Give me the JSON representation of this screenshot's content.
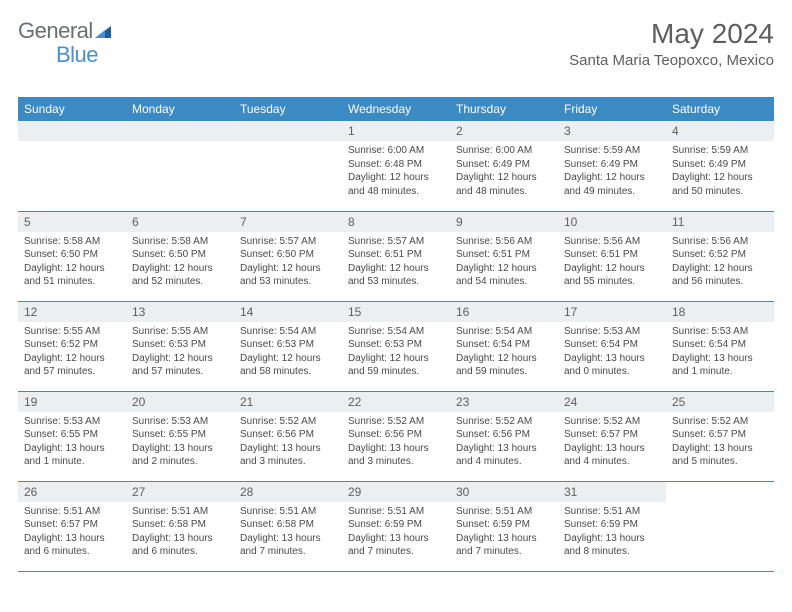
{
  "logo": {
    "text1": "General",
    "text2": "Blue"
  },
  "title": "May 2024",
  "location": "Santa Maria Teopoxco, Mexico",
  "weekdays": [
    "Sunday",
    "Monday",
    "Tuesday",
    "Wednesday",
    "Thursday",
    "Friday",
    "Saturday"
  ],
  "colors": {
    "header_bg": "#3b8ac4",
    "header_text": "#ffffff",
    "daynum_bg": "#eceff1",
    "text_gray": "#5e5e5e",
    "body_text": "#4a4a4a",
    "logo_gray": "#6b6f73",
    "logo_blue": "#4a8fc9"
  },
  "weeks": [
    [
      null,
      null,
      null,
      {
        "n": "1",
        "sr": "6:00 AM",
        "ss": "6:48 PM",
        "dl": "12 hours and 48 minutes."
      },
      {
        "n": "2",
        "sr": "6:00 AM",
        "ss": "6:49 PM",
        "dl": "12 hours and 48 minutes."
      },
      {
        "n": "3",
        "sr": "5:59 AM",
        "ss": "6:49 PM",
        "dl": "12 hours and 49 minutes."
      },
      {
        "n": "4",
        "sr": "5:59 AM",
        "ss": "6:49 PM",
        "dl": "12 hours and 50 minutes."
      }
    ],
    [
      {
        "n": "5",
        "sr": "5:58 AM",
        "ss": "6:50 PM",
        "dl": "12 hours and 51 minutes."
      },
      {
        "n": "6",
        "sr": "5:58 AM",
        "ss": "6:50 PM",
        "dl": "12 hours and 52 minutes."
      },
      {
        "n": "7",
        "sr": "5:57 AM",
        "ss": "6:50 PM",
        "dl": "12 hours and 53 minutes."
      },
      {
        "n": "8",
        "sr": "5:57 AM",
        "ss": "6:51 PM",
        "dl": "12 hours and 53 minutes."
      },
      {
        "n": "9",
        "sr": "5:56 AM",
        "ss": "6:51 PM",
        "dl": "12 hours and 54 minutes."
      },
      {
        "n": "10",
        "sr": "5:56 AM",
        "ss": "6:51 PM",
        "dl": "12 hours and 55 minutes."
      },
      {
        "n": "11",
        "sr": "5:56 AM",
        "ss": "6:52 PM",
        "dl": "12 hours and 56 minutes."
      }
    ],
    [
      {
        "n": "12",
        "sr": "5:55 AM",
        "ss": "6:52 PM",
        "dl": "12 hours and 57 minutes."
      },
      {
        "n": "13",
        "sr": "5:55 AM",
        "ss": "6:53 PM",
        "dl": "12 hours and 57 minutes."
      },
      {
        "n": "14",
        "sr": "5:54 AM",
        "ss": "6:53 PM",
        "dl": "12 hours and 58 minutes."
      },
      {
        "n": "15",
        "sr": "5:54 AM",
        "ss": "6:53 PM",
        "dl": "12 hours and 59 minutes."
      },
      {
        "n": "16",
        "sr": "5:54 AM",
        "ss": "6:54 PM",
        "dl": "12 hours and 59 minutes."
      },
      {
        "n": "17",
        "sr": "5:53 AM",
        "ss": "6:54 PM",
        "dl": "13 hours and 0 minutes."
      },
      {
        "n": "18",
        "sr": "5:53 AM",
        "ss": "6:54 PM",
        "dl": "13 hours and 1 minute."
      }
    ],
    [
      {
        "n": "19",
        "sr": "5:53 AM",
        "ss": "6:55 PM",
        "dl": "13 hours and 1 minute."
      },
      {
        "n": "20",
        "sr": "5:53 AM",
        "ss": "6:55 PM",
        "dl": "13 hours and 2 minutes."
      },
      {
        "n": "21",
        "sr": "5:52 AM",
        "ss": "6:56 PM",
        "dl": "13 hours and 3 minutes."
      },
      {
        "n": "22",
        "sr": "5:52 AM",
        "ss": "6:56 PM",
        "dl": "13 hours and 3 minutes."
      },
      {
        "n": "23",
        "sr": "5:52 AM",
        "ss": "6:56 PM",
        "dl": "13 hours and 4 minutes."
      },
      {
        "n": "24",
        "sr": "5:52 AM",
        "ss": "6:57 PM",
        "dl": "13 hours and 4 minutes."
      },
      {
        "n": "25",
        "sr": "5:52 AM",
        "ss": "6:57 PM",
        "dl": "13 hours and 5 minutes."
      }
    ],
    [
      {
        "n": "26",
        "sr": "5:51 AM",
        "ss": "6:57 PM",
        "dl": "13 hours and 6 minutes."
      },
      {
        "n": "27",
        "sr": "5:51 AM",
        "ss": "6:58 PM",
        "dl": "13 hours and 6 minutes."
      },
      {
        "n": "28",
        "sr": "5:51 AM",
        "ss": "6:58 PM",
        "dl": "13 hours and 7 minutes."
      },
      {
        "n": "29",
        "sr": "5:51 AM",
        "ss": "6:59 PM",
        "dl": "13 hours and 7 minutes."
      },
      {
        "n": "30",
        "sr": "5:51 AM",
        "ss": "6:59 PM",
        "dl": "13 hours and 7 minutes."
      },
      {
        "n": "31",
        "sr": "5:51 AM",
        "ss": "6:59 PM",
        "dl": "13 hours and 8 minutes."
      },
      null
    ]
  ]
}
